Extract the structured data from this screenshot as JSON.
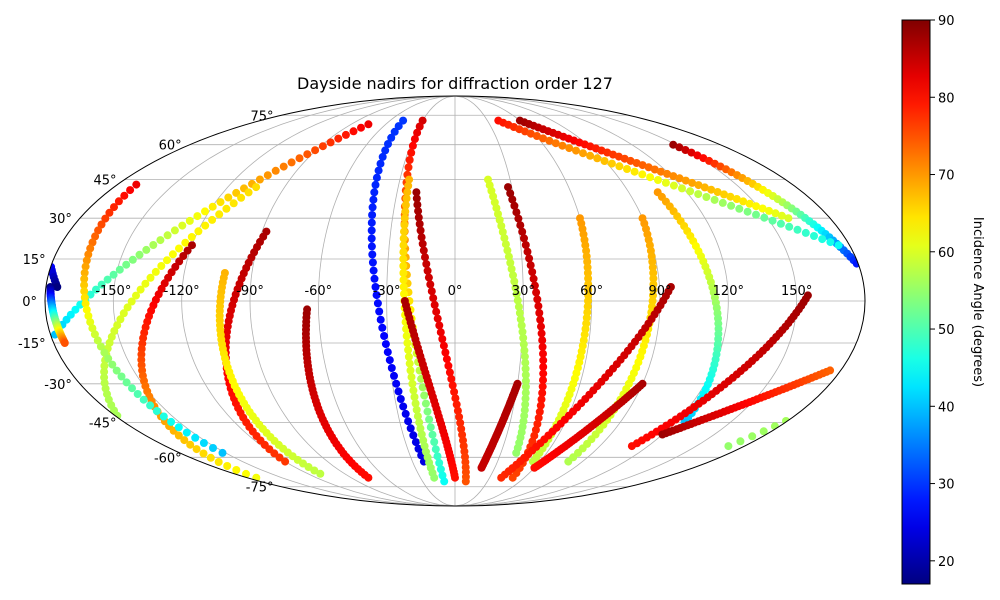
{
  "chart_data": {
    "type": "scatter",
    "projection": "mollweide",
    "title": "Dayside nadirs for diffraction order 127",
    "x_ticks": [
      "-150°",
      "-120°",
      "-90°",
      "-60°",
      "-30°",
      "0°",
      "30°",
      "60°",
      "90°",
      "120°",
      "150°"
    ],
    "x_tick_values": [
      -150,
      -120,
      -90,
      -60,
      -30,
      0,
      30,
      60,
      90,
      120,
      150
    ],
    "y_ticks": [
      "-75°",
      "-60°",
      "-45°",
      "-30°",
      "-15°",
      "0°",
      "15°",
      "30°",
      "45°",
      "60°",
      "75°"
    ],
    "y_tick_values": [
      -75,
      -60,
      -45,
      -30,
      -15,
      0,
      15,
      30,
      45,
      60,
      75
    ],
    "grid": true,
    "colormap": "jet",
    "colorbar": {
      "label": "Incidence Angle (degrees)",
      "min": 17,
      "max": 90,
      "ticks": [
        "20",
        "30",
        "40",
        "50",
        "60",
        "70",
        "80",
        "90"
      ],
      "tick_values": [
        20,
        30,
        40,
        50,
        60,
        70,
        80,
        90
      ]
    },
    "tracks": [
      {
        "lon_top": -75,
        "lat_top": 70,
        "lon_bottom": -178,
        "lat_bottom": -12,
        "inc_top": 82,
        "inc_bottom": 40
      },
      {
        "lon_top": -105,
        "lat_top": 42,
        "lon_bottom": -190,
        "lat_bottom": -55,
        "inc_top": 65,
        "inc_bottom": 55
      },
      {
        "lon_top": -120,
        "lat_top": 20,
        "lon_bottom": -172,
        "lat_bottom": -70,
        "inc_top": 87,
        "inc_bottom": 62
      },
      {
        "lon_top": -170,
        "lat_top": 43,
        "lon_bottom": -152,
        "lat_bottom": -58,
        "inc_top": 82,
        "inc_bottom": 40
      },
      {
        "lon_top": -88,
        "lat_top": 25,
        "lon_bottom": -120,
        "lat_bottom": -62,
        "inc_top": 87,
        "inc_bottom": 77
      },
      {
        "lon_top": -102,
        "lat_top": 10,
        "lon_bottom": -110,
        "lat_bottom": -68,
        "inc_top": 68,
        "inc_bottom": 58
      },
      {
        "lon_top": -65,
        "lat_top": -3,
        "lon_bottom": -75,
        "lat_bottom": -70,
        "inc_top": 88,
        "inc_bottom": 80
      },
      {
        "lon_top": -48,
        "lat_top": 72,
        "lon_bottom": -22,
        "lat_bottom": -62,
        "inc_top": 30,
        "inc_bottom": 24
      },
      {
        "lon_top": -30,
        "lat_top": 72,
        "lon_bottom": -10,
        "lat_bottom": -72,
        "inc_top": 84,
        "inc_bottom": 45
      },
      {
        "lon_top": -25,
        "lat_top": 45,
        "lon_bottom": -18,
        "lat_bottom": -70,
        "inc_top": 68,
        "inc_bottom": 55
      },
      {
        "lon_top": -20,
        "lat_top": 40,
        "lon_bottom": 10,
        "lat_bottom": -72,
        "inc_top": 88,
        "inc_bottom": 75
      },
      {
        "lon_top": -22,
        "lat_top": 0,
        "lon_bottom": 0,
        "lat_bottom": -70,
        "inc_top": 87,
        "inc_bottom": 80
      },
      {
        "lon_top": 18,
        "lat_top": 45,
        "lon_bottom": 40,
        "lat_bottom": -58,
        "inc_top": 60,
        "inc_bottom": 55
      },
      {
        "lon_top": 28,
        "lat_top": 42,
        "lon_bottom": 50,
        "lat_bottom": -70,
        "inc_top": 88,
        "inc_bottom": 76
      },
      {
        "lon_top": 60,
        "lat_top": 30,
        "lon_bottom": 55,
        "lat_bottom": -62,
        "inc_top": 70,
        "inc_bottom": 58
      },
      {
        "lon_top": 90,
        "lat_top": 30,
        "lon_bottom": 80,
        "lat_bottom": -62,
        "inc_top": 70,
        "inc_bottom": 57
      },
      {
        "lon_top": 95,
        "lat_top": 5,
        "lon_bottom": 40,
        "lat_bottom": -70,
        "inc_top": 87,
        "inc_bottom": 78
      },
      {
        "lon_top": 30,
        "lat_top": -30,
        "lon_bottom": 20,
        "lat_bottom": -65,
        "inc_top": 87,
        "inc_bottom": 85
      },
      {
        "lon_top": 105,
        "lat_top": 40,
        "lon_bottom": 125,
        "lat_bottom": -45,
        "inc_top": 70,
        "inc_bottom": 40
      },
      {
        "lon_top": 148,
        "lat_top": 60,
        "lon_bottom": 185,
        "lat_bottom": 5,
        "inc_top": 88,
        "inc_bottom": 17
      },
      {
        "lon_top": 155,
        "lat_top": 2,
        "lon_bottom": 110,
        "lat_bottom": -55,
        "inc_top": 88,
        "inc_bottom": 80
      },
      {
        "lon_top": 90,
        "lat_top": -30,
        "lon_bottom": 60,
        "lat_bottom": -65,
        "inc_top": 87,
        "inc_bottom": 80
      },
      {
        "lon_top": 120,
        "lat_top": -50,
        "lon_bottom": 175,
        "lat_bottom": -25,
        "inc_top": 88,
        "inc_bottom": 74
      },
      {
        "lon_top": 60,
        "lat_top": 72,
        "lon_bottom": 160,
        "lat_bottom": 30,
        "inc_top": 88,
        "inc_bottom": 60
      },
      {
        "lon_top": 40,
        "lat_top": 72,
        "lon_bottom": 175,
        "lat_bottom": 20,
        "inc_top": 80,
        "inc_bottom": 45
      },
      {
        "lon_top": -178,
        "lat_top": 5,
        "lon_bottom": -175,
        "lat_bottom": -15,
        "inc_top": 17,
        "inc_bottom": 75
      }
    ]
  }
}
